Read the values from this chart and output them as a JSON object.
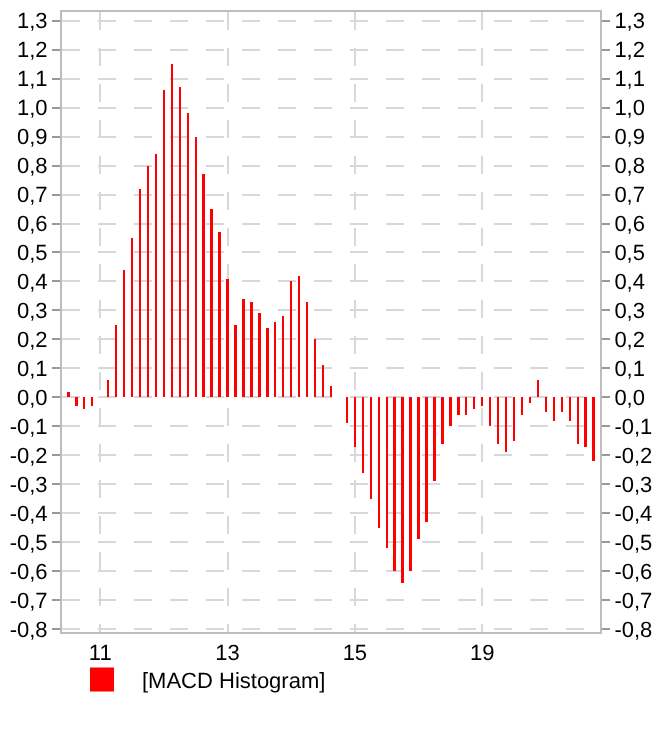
{
  "chart_data": {
    "type": "bar",
    "categories": [
      null,
      null,
      null,
      null,
      "11",
      null,
      null,
      null,
      null,
      null,
      null,
      null,
      null,
      null,
      null,
      null,
      null,
      null,
      null,
      null,
      "13",
      null,
      null,
      null,
      null,
      null,
      null,
      null,
      null,
      null,
      null,
      null,
      null,
      null,
      null,
      null,
      "15",
      null,
      null,
      null,
      null,
      null,
      null,
      null,
      null,
      null,
      null,
      null,
      null,
      null,
      null,
      null,
      "19",
      null,
      null,
      null,
      null,
      null,
      null,
      null,
      null,
      null,
      null,
      null,
      null,
      null,
      null
    ],
    "series": [
      {
        "name": "[MACD Histogram]",
        "color": "#ff0000",
        "values": [
          0.02,
          -0.03,
          -0.04,
          -0.03,
          0.0,
          0.06,
          0.25,
          0.44,
          0.55,
          0.72,
          0.8,
          0.84,
          1.06,
          1.15,
          1.07,
          0.98,
          0.9,
          0.77,
          0.65,
          0.57,
          0.41,
          0.25,
          0.34,
          0.33,
          0.29,
          0.24,
          0.26,
          0.28,
          0.4,
          0.42,
          0.33,
          0.2,
          0.11,
          0.04,
          0.0,
          -0.09,
          -0.17,
          -0.26,
          -0.35,
          -0.45,
          -0.52,
          -0.6,
          -0.64,
          -0.6,
          -0.49,
          -0.43,
          -0.29,
          -0.16,
          -0.1,
          -0.06,
          -0.06,
          -0.04,
          -0.03,
          -0.1,
          -0.16,
          -0.19,
          -0.15,
          -0.06,
          -0.02,
          0.06,
          -0.05,
          -0.08,
          -0.05,
          -0.08,
          -0.16,
          -0.17,
          -0.22
        ]
      }
    ],
    "ylim": [
      -0.81,
      1.33
    ],
    "yticks": [
      {
        "value": -0.8,
        "label": "-0,8"
      },
      {
        "value": -0.7,
        "label": "-0,7"
      },
      {
        "value": -0.6,
        "label": "-0,6"
      },
      {
        "value": -0.5,
        "label": "-0,5"
      },
      {
        "value": -0.4,
        "label": "-0,4"
      },
      {
        "value": -0.3,
        "label": "-0,3"
      },
      {
        "value": -0.2,
        "label": "-0,2"
      },
      {
        "value": -0.1,
        "label": "-0,1"
      },
      {
        "value": 0,
        "label": "0,0"
      },
      {
        "value": 0.1,
        "label": "0,1"
      },
      {
        "value": 0.2,
        "label": "0,2"
      },
      {
        "value": 0.3,
        "label": "0,3"
      },
      {
        "value": 0.4,
        "label": "0,4"
      },
      {
        "value": 0.5,
        "label": "0,5"
      },
      {
        "value": 0.6,
        "label": "0,6"
      },
      {
        "value": 0.7,
        "label": "0,7"
      },
      {
        "value": 0.8,
        "label": "0,8"
      },
      {
        "value": 0.9,
        "label": "0,9"
      },
      {
        "value": 1.0,
        "label": "1,0"
      },
      {
        "value": 1.1,
        "label": "1,1"
      },
      {
        "value": 1.2,
        "label": "1,2"
      },
      {
        "value": 1.3,
        "label": "1,3"
      }
    ],
    "y2lim": [
      -0.81,
      1.33
    ],
    "y2ticks": [
      {
        "value": -0.8,
        "label": "-0,8"
      },
      {
        "value": -0.7,
        "label": "-0,7"
      },
      {
        "value": -0.6,
        "label": "-0,6"
      },
      {
        "value": -0.5,
        "label": "-0,5"
      },
      {
        "value": -0.4,
        "label": "-0,4"
      },
      {
        "value": -0.3,
        "label": "-0,3"
      },
      {
        "value": -0.2,
        "label": "-0,2"
      },
      {
        "value": -0.1,
        "label": "-0,1"
      },
      {
        "value": 0,
        "label": "0,0"
      },
      {
        "value": 0.1,
        "label": "0,1"
      },
      {
        "value": 0.2,
        "label": "0,2"
      },
      {
        "value": 0.3,
        "label": "0,3"
      },
      {
        "value": 0.4,
        "label": "0,4"
      },
      {
        "value": 0.5,
        "label": "0,5"
      },
      {
        "value": 0.6,
        "label": "0,6"
      },
      {
        "value": 0.7,
        "label": "0,7"
      },
      {
        "value": 0.8,
        "label": "0,8"
      },
      {
        "value": 0.9,
        "label": "0,9"
      },
      {
        "value": 1.0,
        "label": "1,0"
      },
      {
        "value": 1.1,
        "label": "1,1"
      },
      {
        "value": 1.2,
        "label": "1,2"
      },
      {
        "value": 1.3,
        "label": "1,3"
      }
    ],
    "grid": true,
    "legend": "bottom left"
  }
}
